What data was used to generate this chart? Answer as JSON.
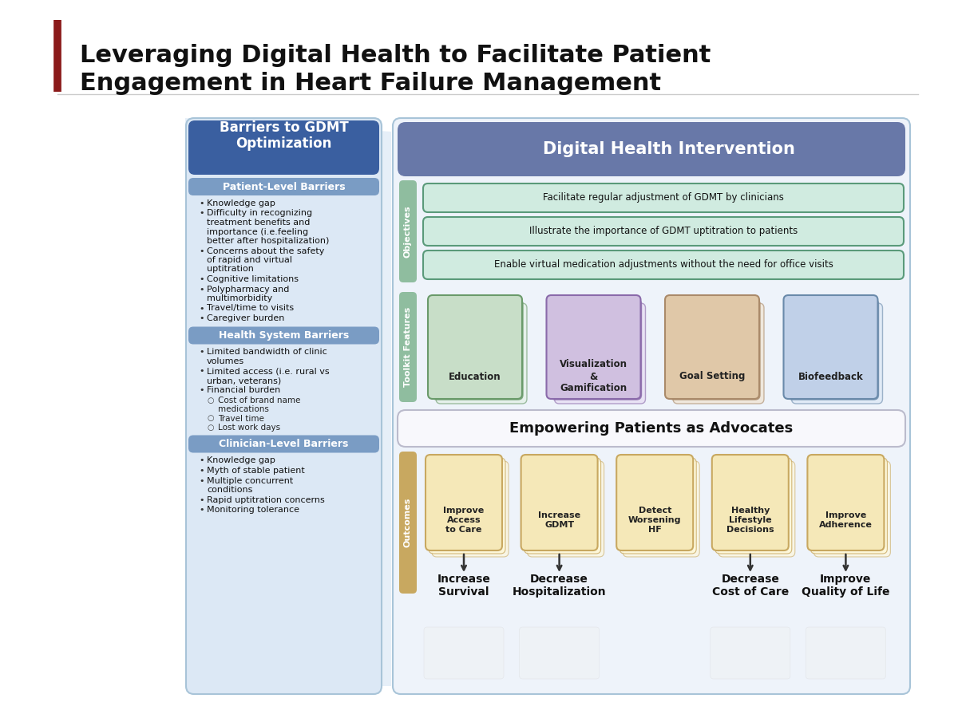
{
  "title_line1": "Leveraging Digital Health to Facilitate Patient",
  "title_line2": "Engagement in Heart Failure Management",
  "title_color": "#000000",
  "accent_bar_color": "#8B1A1A",
  "bg_color": "#FFFFFF",
  "left_panel_bg": "#DCE8F5",
  "left_panel_border": "#A8C4D8",
  "left_header_bg": "#3A5FA0",
  "left_header_text": "Barriers to GDMT\nOptimization",
  "left_header_color": "#FFFFFF",
  "patient_header_bg": "#7A9CC4",
  "patient_header_text": "Patient-Level Barriers",
  "patient_header_color": "#FFFFFF",
  "patient_bullets": [
    "Knowledge gap",
    "Difficulty in recognizing\ntreatment benefits and\nimportance (i.e.feeling\nbetter after hospitalization)",
    "Concerns about the safety\nof rapid and virtual\nuptitration",
    "Cognitive limitations",
    "Polypharmacy and\nmultimorbidity",
    "Travel/time to visits",
    "Caregiver burden"
  ],
  "health_header_bg": "#7A9CC4",
  "health_header_text": "Health System Barriers",
  "health_header_color": "#FFFFFF",
  "health_bullets": [
    "Limited bandwidth of clinic\nvolumes",
    "Limited access (i.e. rural vs\nurban, veterans)",
    "Financial burden"
  ],
  "health_sub_bullets": [
    "Cost of brand name\nmedications",
    "Travel time",
    "Lost work days"
  ],
  "clinician_header_bg": "#7A9CC4",
  "clinician_header_text": "Clinician-Level Barriers",
  "clinician_header_color": "#FFFFFF",
  "clinician_bullets": [
    "Knowledge gap",
    "Myth of stable patient",
    "Multiple concurrent\nconditions",
    "Rapid uptitration concerns",
    "Monitoring tolerance"
  ],
  "right_panel_bg": "#EEF3FA",
  "right_panel_border": "#A8C4D8",
  "dhi_header_bg": "#6878A8",
  "dhi_header_text": "Digital Health Intervention",
  "dhi_header_color": "#FFFFFF",
  "obj_label_bg": "#8FBD9F",
  "obj_label_text": "Objectives",
  "objectives": [
    "Facilitate regular adjustment of GDMT by clinicians",
    "Illustrate the importance of GDMT uptitration to patients",
    "Enable virtual medication adjustments without the need for office visits"
  ],
  "obj_box_bg": "#D0EBE0",
  "obj_box_border": "#5A9A7A",
  "toolkit_label_bg": "#8FBD9F",
  "toolkit_label_text": "Toolkit Features",
  "toolkit_items": [
    "Education",
    "Visualization\n&\nGamification",
    "Goal Setting",
    "Biofeedback"
  ],
  "toolkit_colors": [
    "#C8DEC8",
    "#D0C0E0",
    "#E0C8A8",
    "#C0D0E8"
  ],
  "toolkit_border_colors": [
    "#6A9A6A",
    "#8A6AAA",
    "#AA8A6A",
    "#6A8AAA"
  ],
  "toolkit_back_colors": [
    "#E0EEE0",
    "#E4D8F0",
    "#F0E0C8",
    "#D8E4F4"
  ],
  "empower_text": "Empowering Patients as Advocates",
  "empower_bg": "#F8F8FC",
  "empower_border": "#BBBBCC",
  "outcomes_label_bg": "#C8A860",
  "outcomes_label_text": "Outcomes",
  "outcome_items": [
    "Improve\nAccess\nto Care",
    "Increase\nGDMT",
    "Detect\nWorsening\nHF",
    "Healthy\nLifestyle\nDecisions",
    "Improve\nAdherence"
  ],
  "outcome_bg": "#F5E8B8",
  "outcome_border": "#C8A860",
  "outcome_back": "#FFF8D8",
  "final_outcomes": [
    "Increase\nSurvival",
    "Decrease\nHospitalization",
    "Decrease\nCost of Care",
    "Improve\nQuality of Life"
  ],
  "funnel_color": "#C8DCF0",
  "separator_color": "#CCCCCC"
}
